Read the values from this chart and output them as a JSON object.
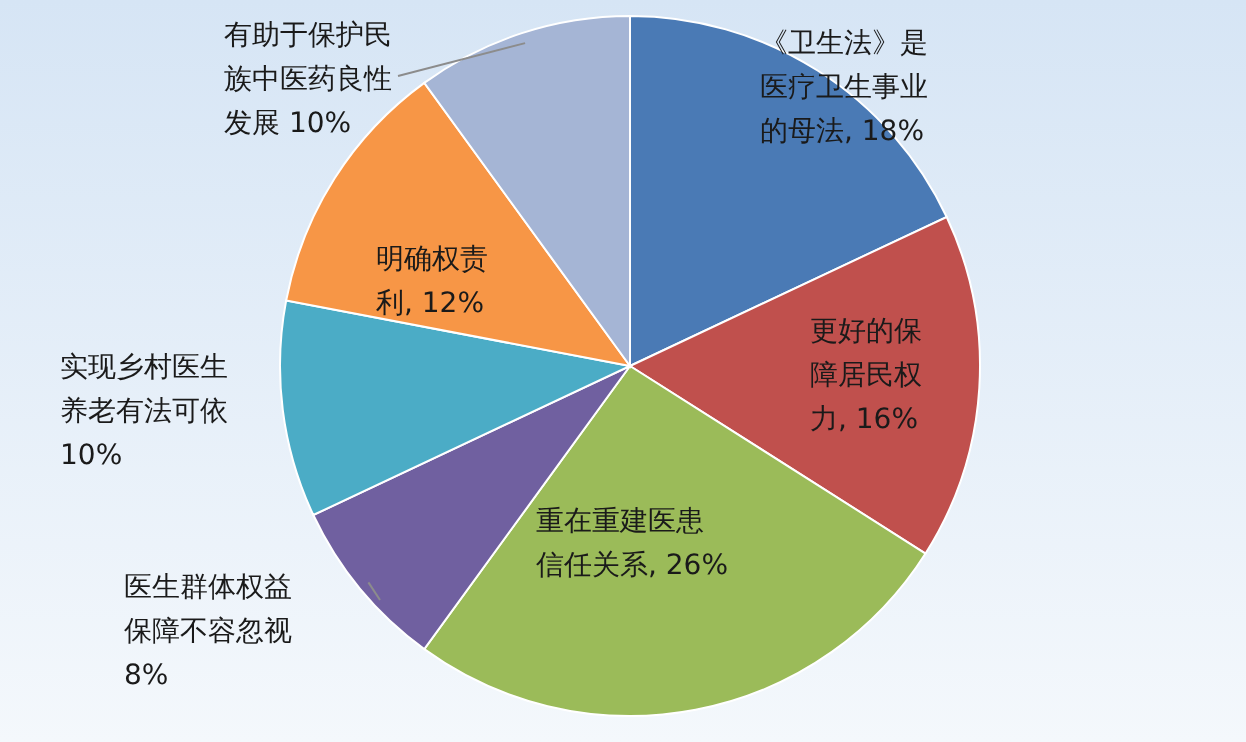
{
  "chart_data": {
    "type": "pie",
    "categories": [
      "《卫生法》是医疗卫生事业的母法",
      "更好的保障居民权力",
      "重在重建医患信任关系",
      "医生群体权益保障不容忽视",
      "实现乡村医生养老有法可依",
      "明确权责利",
      "有助于保护民族中医药良性发展"
    ],
    "values": [
      18,
      16,
      26,
      8,
      10,
      12,
      10
    ],
    "value_labels": [
      "18%",
      "16%",
      "26%",
      "8%",
      "10%",
      "12%",
      "10%"
    ],
    "colors": [
      "#4a7ab5",
      "#c0504d",
      "#9bbb59",
      "#7060a0",
      "#4bacc6",
      "#f79646",
      "#a5b5d5"
    ]
  }
}
